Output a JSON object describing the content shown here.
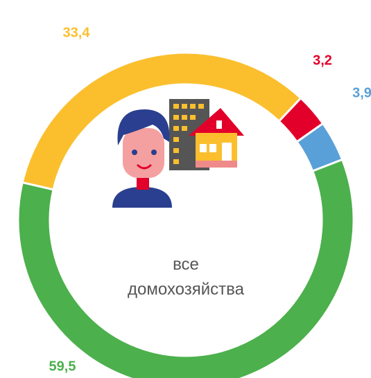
{
  "chart_data": {
    "type": "donut",
    "categories": [
      null,
      null,
      null,
      null
    ],
    "values": [
      33.4,
      3.2,
      3.9,
      59.5
    ],
    "value_labels": [
      "33,4",
      "3,2",
      "3,9",
      "59,5"
    ],
    "colors": [
      "#fbbf2e",
      "#e2002b",
      "#5aa0d8",
      "#4cb04c"
    ],
    "center_label": [
      "все",
      "домохозяйства"
    ]
  }
}
